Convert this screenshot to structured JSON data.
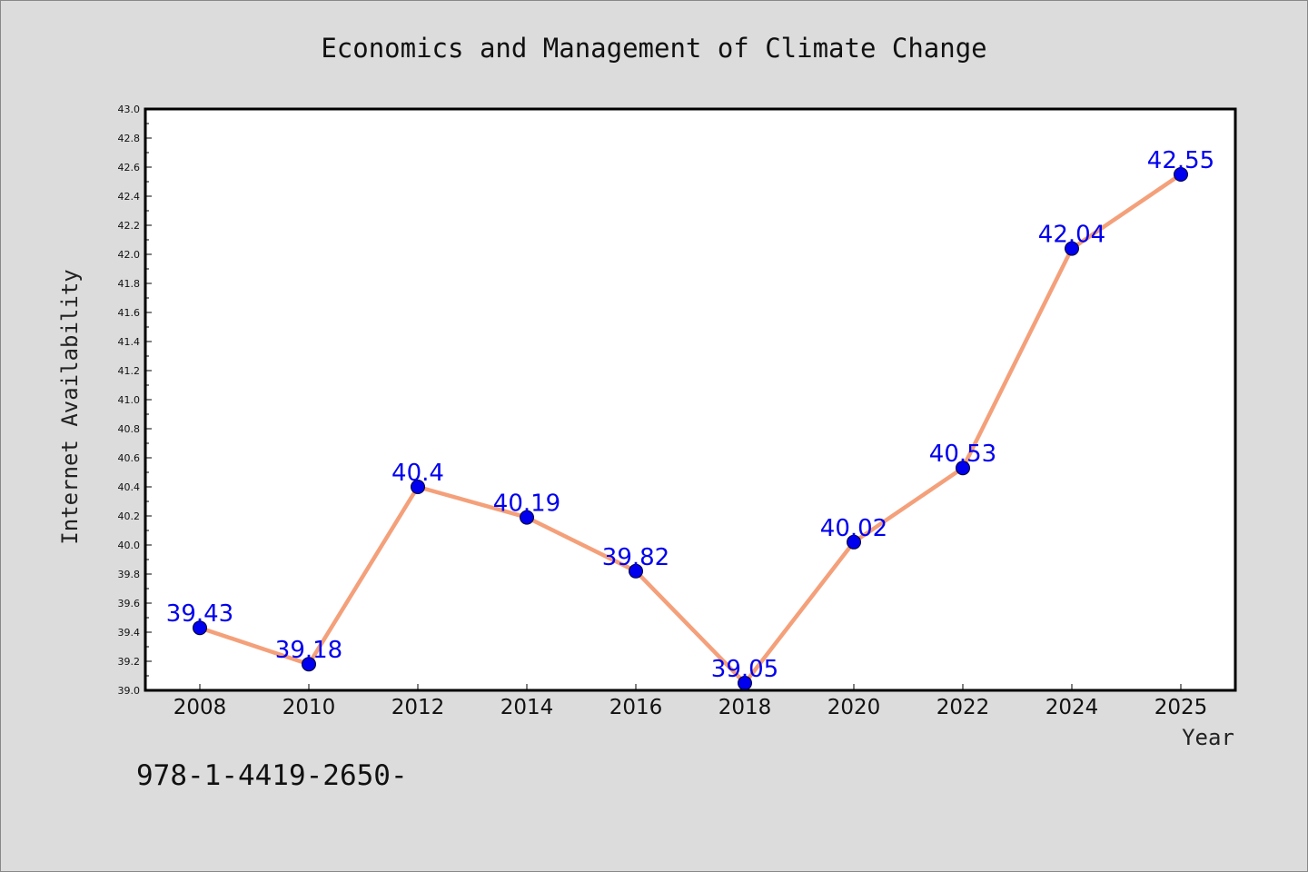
{
  "chart_data": {
    "type": "line",
    "title": "Economics and Management of Climate Change",
    "xlabel": "Year",
    "ylabel": "Internet Availability",
    "categories": [
      "2008",
      "2010",
      "2012",
      "2014",
      "2016",
      "2018",
      "2020",
      "2022",
      "2024",
      "2025"
    ],
    "series": [
      {
        "values": [
          39.43,
          39.18,
          40.4,
          40.19,
          39.82,
          39.05,
          40.02,
          40.53,
          42.04,
          42.55
        ],
        "data_labels": [
          "39.43",
          "39.18",
          "40.4",
          "40.19",
          "39.82",
          "39.05",
          "40.02",
          "40.53",
          "42.04",
          "42.55"
        ]
      }
    ],
    "ylim": [
      39.0,
      43.0
    ],
    "yticks": [
      "39.0",
      "39.2",
      "39.4",
      "39.6",
      "39.8",
      "40.0",
      "40.2",
      "40.4",
      "40.6",
      "40.8",
      "41.0",
      "41.2",
      "41.4",
      "41.6",
      "41.8",
      "42.0",
      "42.2",
      "42.4",
      "42.6",
      "42.8",
      "43.0"
    ],
    "grid": false,
    "legend": "none",
    "colors": {
      "line": "#f4a07a",
      "marker": "#0000ee",
      "label": "#0000ee",
      "background": "#dcdcdc",
      "plot_background": "#ffffff"
    }
  },
  "footnote": "978-1-4419-2650-"
}
